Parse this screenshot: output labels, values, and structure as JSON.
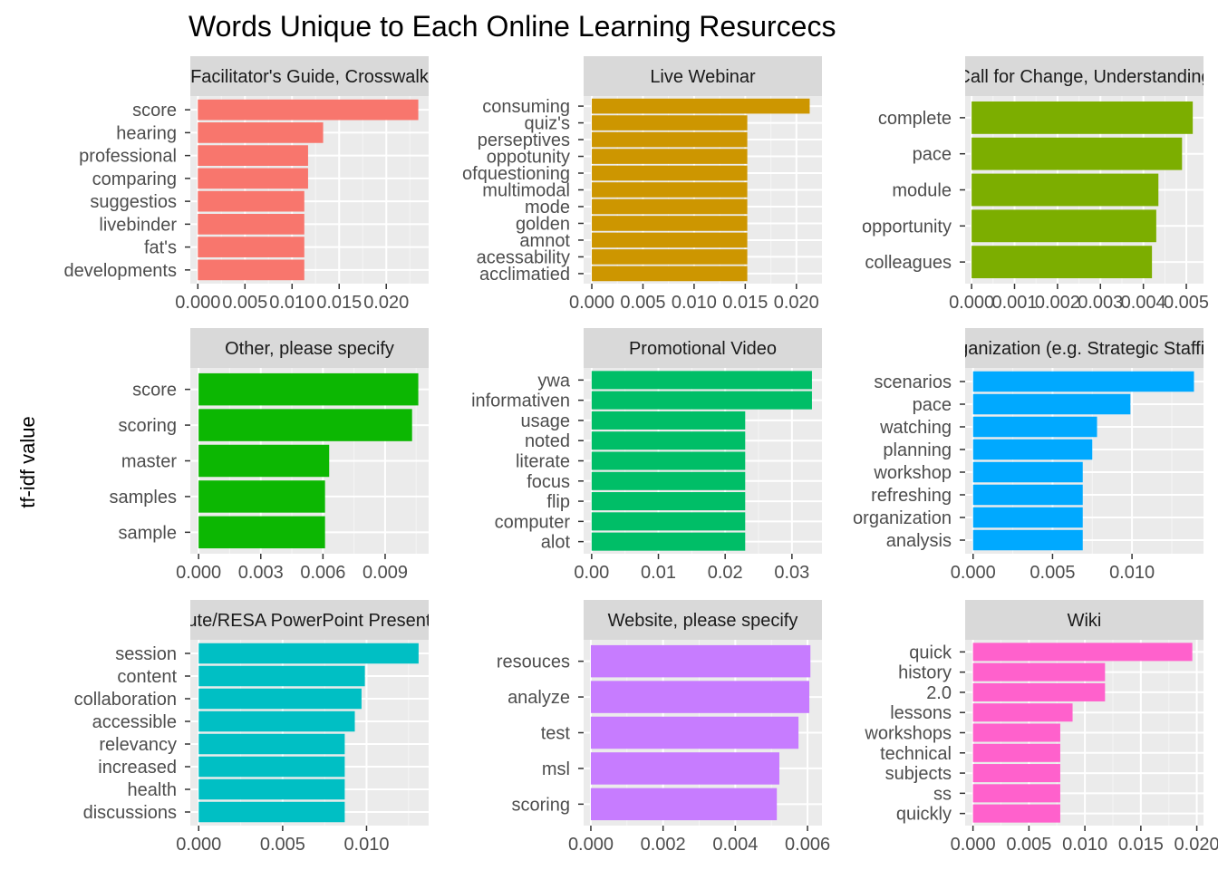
{
  "chart_data": {
    "type": "bar",
    "title": "Words Unique to Each Online Learning Resurcecs",
    "ylabel": "tf-idf value",
    "orientation": "horizontal",
    "grid": true,
    "legend": "none",
    "facets": [
      {
        "strip": "Facilitator's Guide, Crosswalk",
        "color": "#F8766D",
        "categories": [
          "score",
          "hearing",
          "professional",
          "comparing",
          "suggestios",
          "livebinder",
          "fat's",
          "developments"
        ],
        "values": [
          0.0234,
          0.0133,
          0.0117,
          0.0117,
          0.0113,
          0.0113,
          0.0113,
          0.0113
        ],
        "xlim": [
          -0.0008,
          0.0245
        ],
        "ticks": [
          0,
          0.005,
          0.01,
          0.015,
          0.02
        ],
        "tick_labels": [
          "0.000",
          "0.005",
          "0.010",
          "0.015",
          "0.020"
        ]
      },
      {
        "strip": "Live Webinar",
        "color": "#CD9600",
        "categories": [
          "consuming",
          "quiz's",
          "perseptives",
          "oppotunity",
          "ofquestioning",
          "multimodal",
          "mode",
          "golden",
          "amnot",
          "acessability",
          "acclimatied"
        ],
        "values": [
          0.0213,
          0.0152,
          0.0152,
          0.0152,
          0.0152,
          0.0152,
          0.0152,
          0.0152,
          0.0152,
          0.0152,
          0.0152
        ],
        "xlim": [
          -0.0008,
          0.0225
        ],
        "ticks": [
          0,
          0.005,
          0.01,
          0.015,
          0.02
        ],
        "tick_labels": [
          "0.000",
          "0.005",
          "0.010",
          "0.015",
          "0.020"
        ]
      },
      {
        "strip": "Call for Change, Understanding",
        "color": "#7CAE00",
        "categories": [
          "complete",
          "pace",
          "module",
          "opportunity",
          "colleagues"
        ],
        "values": [
          0.00515,
          0.0049,
          0.00435,
          0.0043,
          0.0042
        ],
        "xlim": [
          -0.00015,
          0.0054
        ],
        "ticks": [
          0,
          0.001,
          0.002,
          0.003,
          0.004,
          0.005
        ],
        "tick_labels": [
          "0.000",
          "0.001",
          "0.002",
          "0.003",
          "0.004",
          "0.005"
        ]
      },
      {
        "strip": "Other, please specify",
        "color": "#0CB702",
        "categories": [
          "score",
          "scoring",
          "master",
          "samples",
          "sample"
        ],
        "values": [
          0.0106,
          0.0103,
          0.0063,
          0.0061,
          0.0061
        ],
        "xlim": [
          -0.0004,
          0.0111
        ],
        "ticks": [
          0,
          0.003,
          0.006,
          0.009
        ],
        "tick_labels": [
          "0.000",
          "0.003",
          "0.006",
          "0.009"
        ]
      },
      {
        "strip": "Promotional Video",
        "color": "#00BE67",
        "categories": [
          "ywa",
          "informativen",
          "usage",
          "noted",
          "literate",
          "focus",
          "flip",
          "computer",
          "alot"
        ],
        "values": [
          0.033,
          0.033,
          0.023,
          0.023,
          0.023,
          0.023,
          0.023,
          0.023,
          0.023
        ],
        "xlim": [
          -0.0012,
          0.0345
        ],
        "ticks": [
          0,
          0.01,
          0.02,
          0.03
        ],
        "tick_labels": [
          "0.00",
          "0.01",
          "0.02",
          "0.03"
        ]
      },
      {
        "strip": "Organization (e.g. Strategic Staffing)",
        "color": "#00A9FF",
        "categories": [
          "scenarios",
          "pace",
          "watching",
          "planning",
          "workshop",
          "refreshing",
          "organization",
          "analysis"
        ],
        "values": [
          0.0139,
          0.0099,
          0.0078,
          0.0075,
          0.0069,
          0.0069,
          0.0069,
          0.0069
        ],
        "xlim": [
          -0.0005,
          0.0145
        ],
        "ticks": [
          0,
          0.005,
          0.01
        ],
        "tick_labels": [
          "0.000",
          "0.005",
          "0.010"
        ]
      },
      {
        "strip": "Institute/RESA PowerPoint Presentation",
        "color": "#00BFC4",
        "categories": [
          "session",
          "content",
          "collaboration",
          "accessible",
          "relevancy",
          "increased",
          "health",
          "discussions"
        ],
        "values": [
          0.0131,
          0.0099,
          0.0097,
          0.0093,
          0.0087,
          0.0087,
          0.0087,
          0.0087
        ],
        "xlim": [
          -0.0005,
          0.0137
        ],
        "ticks": [
          0,
          0.005,
          0.01
        ],
        "tick_labels": [
          "0.000",
          "0.005",
          "0.010"
        ]
      },
      {
        "strip": "Website, please specify",
        "color": "#C77CFF",
        "categories": [
          "resouces",
          "analyze",
          "test",
          "msl",
          "scoring"
        ],
        "values": [
          0.00608,
          0.00605,
          0.00575,
          0.00522,
          0.00515
        ],
        "xlim": [
          -0.0002,
          0.0064
        ],
        "ticks": [
          0,
          0.002,
          0.004,
          0.006
        ],
        "tick_labels": [
          "0.000",
          "0.002",
          "0.004",
          "0.006"
        ]
      },
      {
        "strip": "Wiki",
        "color": "#FF61CC",
        "categories": [
          "quick",
          "history",
          "2.0",
          "lessons",
          "workshops",
          "technical",
          "subjects",
          "ss",
          "quickly"
        ],
        "values": [
          0.0196,
          0.0118,
          0.0118,
          0.0089,
          0.0078,
          0.0078,
          0.0078,
          0.0078,
          0.0078
        ],
        "xlim": [
          -0.0007,
          0.0206
        ],
        "ticks": [
          0,
          0.005,
          0.01,
          0.015,
          0.02
        ],
        "tick_labels": [
          "0.000",
          "0.005",
          "0.010",
          "0.015",
          "0.020"
        ]
      }
    ]
  },
  "colors": {
    "panel_bg": "#EBEBEB",
    "strip_bg": "#D9D9D9",
    "grid_major": "#FFFFFF",
    "grid_minor": "#F5F5F5",
    "tick_text": "#4D4D4D",
    "tick_mark": "#333333"
  }
}
